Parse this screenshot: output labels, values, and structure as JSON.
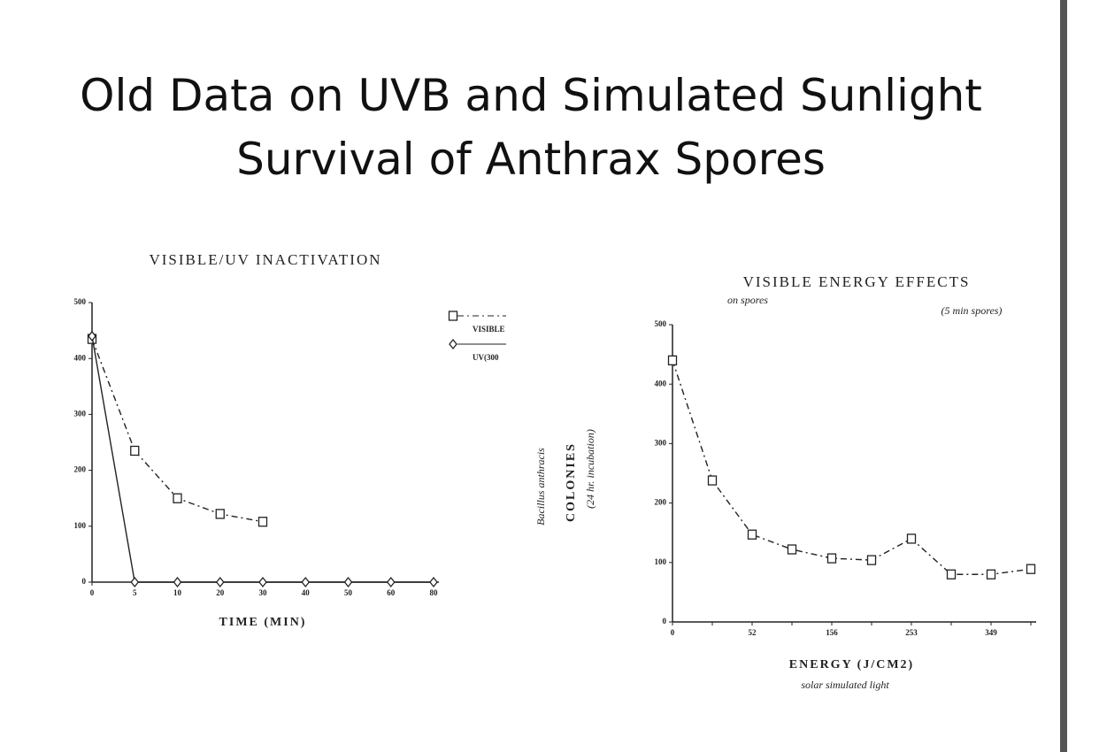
{
  "title": "Old Data on UVB and Simulated Sunlight Survival of Anthrax Spores",
  "chart_data": [
    {
      "type": "line",
      "title": "VISIBLE/UV INACTIVATION",
      "x_label": "TIME (MIN)",
      "categories": [
        "0",
        "5",
        "10",
        "20",
        "30",
        "40",
        "50",
        "60",
        "80"
      ],
      "ylim": [
        0,
        500
      ],
      "yticks": [
        0,
        100,
        200,
        300,
        400,
        500
      ],
      "series": [
        {
          "name": "VISIBLE",
          "color": "#222222",
          "line_style": "dashed",
          "marker": "square",
          "values": [
            435,
            235,
            150,
            122,
            108,
            null,
            null,
            null,
            null
          ]
        },
        {
          "name": "UV(300",
          "color": "#222222",
          "line_style": "solid",
          "marker": "diamond",
          "values": [
            440,
            0,
            0,
            0,
            0,
            0,
            0,
            0,
            0
          ]
        }
      ]
    },
    {
      "type": "line",
      "title": "VISIBLE ENERGY EFFECTS",
      "x_label": "ENERGY (J/CM2)",
      "y_label": "COLONIES",
      "annotations": [
        "on spores",
        "(5 min spores)",
        "solar simulated light",
        "Bacillus anthracis",
        "(24 hr. incubation)"
      ],
      "categories": [
        "0",
        null,
        "52",
        null,
        "156",
        null,
        "253",
        null,
        "349",
        null
      ],
      "ylim": [
        0,
        500
      ],
      "yticks": [
        0,
        100,
        200,
        300,
        400,
        500
      ],
      "series": [
        {
          "color": "#222222",
          "line_style": "dashed",
          "marker": "square",
          "values": [
            440,
            238,
            147,
            122,
            107,
            104,
            140,
            80,
            80,
            89
          ]
        }
      ]
    }
  ]
}
